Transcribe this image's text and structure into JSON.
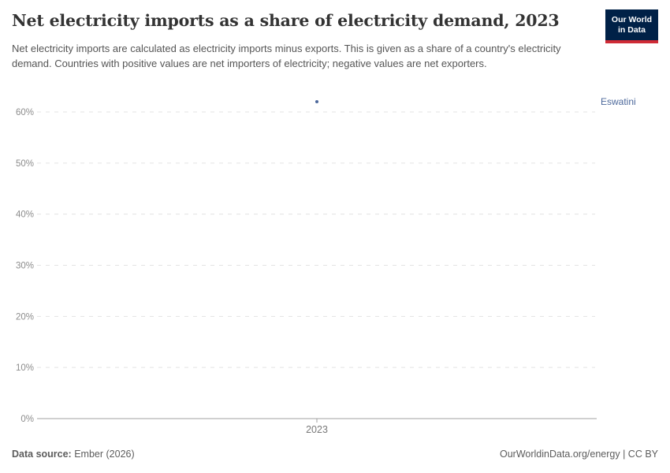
{
  "header": {
    "title": "Net electricity imports as a share of electricity demand, 2023",
    "logo": {
      "line1": "Our World",
      "line2": "in Data",
      "bg_color": "#002147",
      "accent_color": "#cf2b36"
    }
  },
  "subtitle": "Net electricity imports are calculated as electricity imports minus exports. This is given as a share of a country's electricity demand. Countries with positive values are net importers of electricity; negative values are net exporters.",
  "chart_data": {
    "type": "scatter",
    "title": "Net electricity imports as a share of electricity demand, 2023",
    "x": [
      2023
    ],
    "xtick_labels": [
      "2023"
    ],
    "series": [
      {
        "name": "Eswatini",
        "values": [
          62
        ],
        "color": "#4c689b"
      }
    ],
    "xlabel": "",
    "ylabel": "",
    "ylim": [
      0,
      65
    ],
    "yticks": [
      0,
      10,
      20,
      30,
      40,
      50,
      60
    ],
    "ytick_suffix": "%",
    "grid": "dashed horizontal gridlines",
    "grid_color": "#e3e3e3",
    "axis_color": "#a1a1a1",
    "legend_position": "entity label right of plot"
  },
  "footer": {
    "datasource_label": "Data source:",
    "datasource_value": " Ember (2026)",
    "credit": "OurWorldinData.org/energy | CC BY"
  }
}
